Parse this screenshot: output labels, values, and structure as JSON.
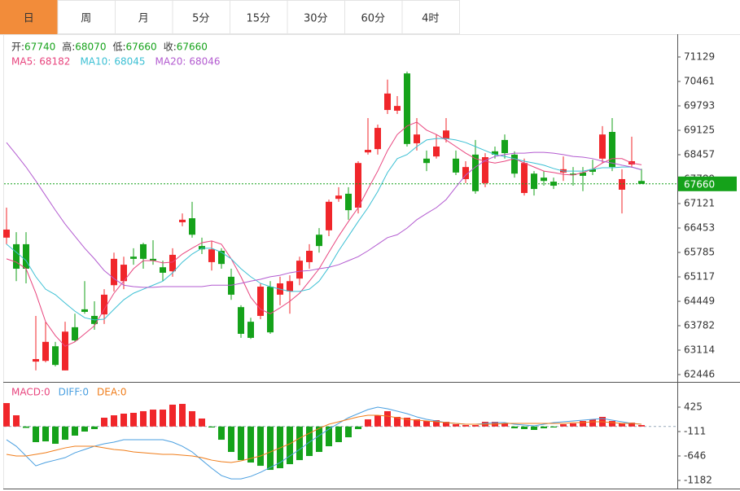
{
  "tabs": {
    "items": [
      "日",
      "周",
      "月",
      "5分",
      "15分",
      "30分",
      "60分",
      "4时"
    ],
    "active": 0
  },
  "chart_data": [
    {
      "type": "candlestick",
      "ohlc_labels": [
        "开:",
        "高:",
        "低:",
        "收:"
      ],
      "up_color": "#f0262a",
      "down_color": "#15a21a",
      "open": [
        66190,
        66010,
        66010,
        62800,
        62820,
        63220,
        62560,
        63740,
        64230,
        64050,
        64090,
        64890,
        65000,
        65670,
        66010,
        65610,
        65380,
        65270,
        66610,
        66720,
        65960,
        65520,
        65830,
        65120,
        64290,
        63890,
        64050,
        64850,
        64630,
        64720,
        65070,
        65520,
        66270,
        66390,
        67250,
        67390,
        67010,
        68520,
        68610,
        69680,
        69660,
        70680,
        68770,
        68350,
        68410,
        68900,
        68350,
        67790,
        68460,
        67680,
        68550,
        68860,
        68460,
        67410,
        67940,
        67830,
        67720,
        67970,
        67940,
        67970,
        68060,
        68350,
        69080,
        67500,
        68190,
        67740
      ],
      "high": [
        67010,
        66340,
        66340,
        64050,
        63890,
        63340,
        63890,
        64110,
        65000,
        64450,
        64780,
        65780,
        65670,
        65900,
        66050,
        66120,
        65560,
        65900,
        66850,
        67170,
        66190,
        66100,
        65900,
        65340,
        64340,
        64000,
        64940,
        65000,
        65120,
        65160,
        65670,
        66010,
        66450,
        67230,
        67570,
        67570,
        68280,
        69460,
        69280,
        70510,
        70060,
        70730,
        69460,
        68570,
        69010,
        69460,
        68570,
        68280,
        68860,
        68500,
        68680,
        69010,
        68550,
        68350,
        68010,
        68010,
        67830,
        68410,
        68120,
        68120,
        68320,
        69240,
        69460,
        68060,
        68950,
        68070
      ],
      "low": [
        66010,
        65000,
        64940,
        62560,
        62780,
        62670,
        62560,
        63340,
        64110,
        63670,
        63830,
        64720,
        64780,
        65450,
        65340,
        65450,
        65000,
        65120,
        66500,
        66190,
        65740,
        65290,
        65340,
        64490,
        63450,
        63420,
        63960,
        63560,
        64340,
        64110,
        64890,
        65340,
        65780,
        66230,
        67170,
        66680,
        66850,
        68460,
        68460,
        69570,
        69570,
        68680,
        68570,
        68010,
        68350,
        68790,
        67900,
        67680,
        67390,
        67570,
        68350,
        68350,
        67830,
        67340,
        67340,
        67610,
        67520,
        67740,
        67610,
        67460,
        67900,
        68230,
        68010,
        66850,
        68100,
        67660
      ],
      "close": [
        66410,
        65340,
        65340,
        62870,
        63340,
        62710,
        63620,
        63380,
        64160,
        63830,
        64630,
        65610,
        65450,
        65610,
        65610,
        65560,
        65230,
        65720,
        66680,
        66270,
        65870,
        65870,
        65470,
        64630,
        63560,
        63450,
        64850,
        63600,
        64940,
        65000,
        65560,
        65830,
        65960,
        67170,
        67340,
        66940,
        68230,
        68590,
        69190,
        70130,
        69790,
        68750,
        69010,
        68230,
        68680,
        69120,
        67970,
        68120,
        67460,
        68390,
        68460,
        68500,
        67940,
        68230,
        67520,
        67740,
        67610,
        68060,
        67900,
        67880,
        67990,
        69010,
        68120,
        67790,
        68280,
        67660
      ],
      "series": [
        {
          "name": "MA5:",
          "color": "#e8457e",
          "values": [
            65610,
            65520,
            65340,
            64670,
            63890,
            63510,
            63220,
            63340,
            63560,
            63780,
            64230,
            64670,
            65000,
            65340,
            65560,
            65560,
            65500,
            65520,
            65740,
            65900,
            66050,
            66100,
            66010,
            65610,
            65120,
            64560,
            64230,
            64110,
            64270,
            64450,
            64670,
            65000,
            65340,
            65790,
            66230,
            66630,
            67010,
            67520,
            68010,
            68570,
            69010,
            69240,
            69350,
            69130,
            69010,
            68860,
            68680,
            68500,
            68350,
            68280,
            68230,
            68280,
            68350,
            68230,
            68120,
            68010,
            67970,
            67920,
            67900,
            67970,
            68060,
            68230,
            68350,
            68350,
            68230,
            68182
          ]
        },
        {
          "name": "MA10:",
          "color": "#3cc0d4",
          "values": [
            66010,
            65790,
            65560,
            65120,
            64780,
            64630,
            64400,
            64180,
            64000,
            63940,
            63960,
            64230,
            64490,
            64670,
            64780,
            64890,
            65000,
            65230,
            65520,
            65740,
            65900,
            65900,
            65790,
            65610,
            65340,
            65120,
            64940,
            64850,
            64780,
            64720,
            64720,
            64780,
            65000,
            65380,
            65830,
            66230,
            66630,
            67010,
            67450,
            67970,
            68350,
            68460,
            68680,
            68860,
            68900,
            68900,
            68860,
            68790,
            68680,
            68570,
            68460,
            68410,
            68350,
            68280,
            68230,
            68170,
            68080,
            68010,
            68010,
            68010,
            68060,
            68100,
            68100,
            68120,
            68120,
            68045
          ]
        },
        {
          "name": "MA20:",
          "color": "#b35bd0",
          "values": [
            68790,
            68460,
            68120,
            67740,
            67340,
            66940,
            66560,
            66230,
            65900,
            65610,
            65290,
            65070,
            64890,
            64850,
            64830,
            64830,
            64850,
            64850,
            64850,
            64850,
            64850,
            64890,
            64890,
            64890,
            64940,
            65000,
            65050,
            65120,
            65160,
            65230,
            65270,
            65290,
            65340,
            65380,
            65450,
            65560,
            65670,
            65830,
            66010,
            66190,
            66270,
            66450,
            66680,
            66850,
            67010,
            67230,
            67570,
            67900,
            68120,
            68300,
            68410,
            68460,
            68500,
            68500,
            68520,
            68520,
            68500,
            68460,
            68410,
            68390,
            68350,
            68280,
            68230,
            68170,
            68120,
            68046
          ]
        }
      ],
      "ylim": [
        62268,
        71752
      ],
      "yticks": [
        71129,
        70461,
        69793,
        69125,
        68457,
        67789,
        67121,
        66453,
        65785,
        65117,
        64449,
        63782,
        63114,
        62446
      ]
    },
    {
      "type": "macd",
      "up_color": "#f0262a",
      "down_color": "#15a21a",
      "legend_values": [
        0,
        0,
        0
      ],
      "series": [
        {
          "name": "MACD:",
          "color": "#e8457e",
          "values": [
            514,
            246,
            -30,
            -343,
            -326,
            -379,
            -290,
            -200,
            -111,
            -57,
            193,
            246,
            282,
            300,
            336,
            371,
            371,
            479,
            496,
            336,
            175,
            -22,
            -290,
            -558,
            -737,
            -790,
            -862,
            -951,
            -915,
            -826,
            -737,
            -647,
            -558,
            -433,
            -343,
            -236,
            -57,
            157,
            246,
            336,
            211,
            193,
            157,
            121,
            139,
            103,
            50,
            32,
            32,
            103,
            103,
            68,
            -39,
            -57,
            -75,
            -39,
            -22,
            50,
            68,
            121,
            157,
            211,
            121,
            68,
            85,
            32
          ]
        },
        {
          "name": "DIFF:",
          "color": "#4a9fe0",
          "values": [
            -290,
            -433,
            -647,
            -862,
            -790,
            -737,
            -683,
            -576,
            -504,
            -433,
            -379,
            -343,
            -290,
            -290,
            -290,
            -290,
            -290,
            -343,
            -433,
            -558,
            -737,
            -915,
            -1076,
            -1148,
            -1148,
            -1094,
            -1005,
            -897,
            -790,
            -647,
            -504,
            -343,
            -200,
            -57,
            68,
            193,
            282,
            371,
            425,
            389,
            336,
            282,
            211,
            157,
            121,
            85,
            68,
            50,
            50,
            68,
            85,
            85,
            50,
            32,
            14,
            50,
            85,
            103,
            121,
            139,
            157,
            175,
            139,
            103,
            68,
            50
          ]
        },
        {
          "name": "DEA:",
          "color": "#f07d1a",
          "values": [
            -611,
            -647,
            -647,
            -611,
            -576,
            -522,
            -469,
            -433,
            -433,
            -433,
            -469,
            -504,
            -522,
            -558,
            -576,
            -594,
            -611,
            -611,
            -629,
            -647,
            -683,
            -737,
            -772,
            -790,
            -754,
            -701,
            -647,
            -558,
            -469,
            -379,
            -254,
            -147,
            -40,
            50,
            103,
            157,
            211,
            246,
            246,
            228,
            193,
            157,
            139,
            121,
            103,
            85,
            68,
            50,
            50,
            50,
            50,
            68,
            68,
            68,
            68,
            68,
            68,
            68,
            85,
            85,
            103,
            103,
            85,
            68,
            68,
            50
          ]
        }
      ],
      "ylim": [
        -1361,
        925
      ],
      "yticks": [
        425,
        -111,
        -646,
        -1182
      ]
    }
  ]
}
